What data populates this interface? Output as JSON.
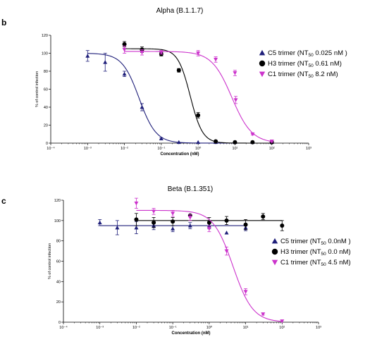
{
  "chart_data": [
    {
      "panel": "b",
      "type": "scatter",
      "title": "Alpha (B.1.1.7)",
      "xlabel": "Concentration (nM)",
      "ylabel": "% of control infection",
      "xscale": "log",
      "xlim": [
        0.0001,
        1000
      ],
      "ylim": [
        0,
        120
      ],
      "x_ticks": [
        "10⁻⁴",
        "10⁻³",
        "10⁻²",
        "10⁻¹",
        "10⁰",
        "10¹",
        "10²",
        "10³"
      ],
      "y_ticks": [
        0,
        20,
        40,
        60,
        80,
        100,
        120
      ],
      "grid": false,
      "legend_position": "right",
      "series": [
        {
          "name": "C5 trimer",
          "legend_prefix": "C5 trimer (NT",
          "legend_sub": "50",
          "legend_suffix": "  0.025 nM )",
          "marker": "triangle-up",
          "color": "#1f1f7a",
          "fit": {
            "top": 100,
            "bottom": 0,
            "ec50": 0.025,
            "hill": 1.9
          },
          "points": [
            {
              "x": 0.001,
              "y": 97,
              "err": 6
            },
            {
              "x": 0.003,
              "y": 90,
              "err": 10
            },
            {
              "x": 0.01,
              "y": 77,
              "err": 3
            },
            {
              "x": 0.03,
              "y": 40,
              "err": 4
            },
            {
              "x": 0.1,
              "y": 5,
              "err": 1
            },
            {
              "x": 0.3,
              "y": 1,
              "err": 0
            },
            {
              "x": 1,
              "y": 1,
              "err": 0
            },
            {
              "x": 3,
              "y": 1,
              "err": 0
            },
            {
              "x": 10,
              "y": 1,
              "err": 0
            },
            {
              "x": 30,
              "y": 1,
              "err": 0
            },
            {
              "x": 100,
              "y": 1,
              "err": 0
            }
          ]
        },
        {
          "name": "H3 trimer",
          "legend_prefix": "H3 trimer (NT",
          "legend_sub": "50",
          "legend_suffix": "  0.61 nM)",
          "marker": "circle",
          "color": "#000000",
          "fit": {
            "top": 105,
            "bottom": 0,
            "ec50": 0.61,
            "hill": 2.6
          },
          "points": [
            {
              "x": 0.01,
              "y": 110,
              "err": 3
            },
            {
              "x": 0.03,
              "y": 104,
              "err": 3
            },
            {
              "x": 0.1,
              "y": 99,
              "err": 2
            },
            {
              "x": 0.3,
              "y": 81,
              "err": 2
            },
            {
              "x": 1,
              "y": 31,
              "err": 3
            },
            {
              "x": 3,
              "y": 2,
              "err": 1
            },
            {
              "x": 10,
              "y": 1,
              "err": 0
            },
            {
              "x": 30,
              "y": 1,
              "err": 0
            },
            {
              "x": 100,
              "y": 1,
              "err": 0
            }
          ]
        },
        {
          "name": "C1 trimer",
          "legend_prefix": "C1 trimer (NT",
          "legend_sub": "50",
          "legend_suffix": "  8.2 nM)",
          "marker": "triangle-down",
          "color": "#cc33cc",
          "fit": {
            "top": 102,
            "bottom": 0,
            "ec50": 8.2,
            "hill": 1.6
          },
          "points": [
            {
              "x": 0.01,
              "y": 104,
              "err": 4
            },
            {
              "x": 0.03,
              "y": 101,
              "err": 3
            },
            {
              "x": 0.1,
              "y": 101,
              "err": 2
            },
            {
              "x": 1,
              "y": 100,
              "err": 3
            },
            {
              "x": 3,
              "y": 93,
              "err": 3
            },
            {
              "x": 10,
              "y": 78,
              "err": 3
            },
            {
              "x": 10.5,
              "y": 48,
              "err": 4
            },
            {
              "x": 30,
              "y": 10,
              "err": 1
            },
            {
              "x": 100,
              "y": 2,
              "err": 1
            }
          ]
        }
      ]
    },
    {
      "panel": "c",
      "type": "scatter",
      "title": "Beta (B.1.351)",
      "xlabel": "Concentration (nM)",
      "ylabel": "% of control infection",
      "xscale": "log",
      "xlim": [
        0.0001,
        1000
      ],
      "ylim": [
        0,
        120
      ],
      "x_ticks": [
        "10⁻⁴",
        "10⁻³",
        "10⁻²",
        "10⁻¹",
        "10⁰",
        "10¹",
        "10²",
        "10³"
      ],
      "y_ticks": [
        0,
        20,
        40,
        60,
        80,
        100,
        120
      ],
      "grid": false,
      "legend_position": "right",
      "series": [
        {
          "name": "C5 trimer",
          "legend_prefix": "C5 trimer (NT",
          "legend_sub": "50",
          "legend_suffix": "  0.0nM )",
          "marker": "triangle-up",
          "color": "#1f1f7a",
          "fit": {
            "flat": 95
          },
          "points": [
            {
              "x": 0.001,
              "y": 98,
              "err": 3
            },
            {
              "x": 0.003,
              "y": 93,
              "err": 7
            },
            {
              "x": 0.01,
              "y": 93,
              "err": 6
            },
            {
              "x": 0.03,
              "y": 95,
              "err": 4
            },
            {
              "x": 0.1,
              "y": 92,
              "err": 3
            },
            {
              "x": 0.3,
              "y": 95,
              "err": 3
            },
            {
              "x": 1,
              "y": 95,
              "err": 3
            },
            {
              "x": 3,
              "y": 88,
              "err": 0
            },
            {
              "x": 10,
              "y": 93,
              "err": 3
            }
          ]
        },
        {
          "name": "H3 trimer",
          "legend_prefix": "H3 trimer (NT",
          "legend_sub": "50",
          "legend_suffix": "  0.0 nM)",
          "marker": "circle",
          "color": "#000000",
          "fit": {
            "flat": 100
          },
          "points": [
            {
              "x": 0.01,
              "y": 101,
              "err": 6
            },
            {
              "x": 0.03,
              "y": 98,
              "err": 5
            },
            {
              "x": 0.1,
              "y": 99,
              "err": 4
            },
            {
              "x": 0.3,
              "y": 105,
              "err": 0
            },
            {
              "x": 1,
              "y": 98,
              "err": 5
            },
            {
              "x": 3,
              "y": 100,
              "err": 4
            },
            {
              "x": 10,
              "y": 96,
              "err": 5
            },
            {
              "x": 30,
              "y": 104,
              "err": 3
            },
            {
              "x": 100,
              "y": 95,
              "err": 5
            }
          ]
        },
        {
          "name": "C1 trimer",
          "legend_prefix": "C1 trimer (NT",
          "legend_sub": "50",
          "legend_suffix": "   4.5 nM)",
          "marker": "triangle-down",
          "color": "#cc33cc",
          "fit": {
            "top": 110,
            "bottom": 0,
            "ec50": 4.5,
            "hill": 1.6
          },
          "points": [
            {
              "x": 0.01,
              "y": 117,
              "err": 5
            },
            {
              "x": 0.03,
              "y": 109,
              "err": 3
            },
            {
              "x": 0.1,
              "y": 107,
              "err": 3
            },
            {
              "x": 0.3,
              "y": 103,
              "err": 3
            },
            {
              "x": 1,
              "y": 92,
              "err": 3
            },
            {
              "x": 3,
              "y": 70,
              "err": 4
            },
            {
              "x": 10,
              "y": 30,
              "err": 3
            },
            {
              "x": 30,
              "y": 8,
              "err": 1
            },
            {
              "x": 100,
              "y": 1,
              "err": 0
            }
          ]
        }
      ]
    }
  ]
}
